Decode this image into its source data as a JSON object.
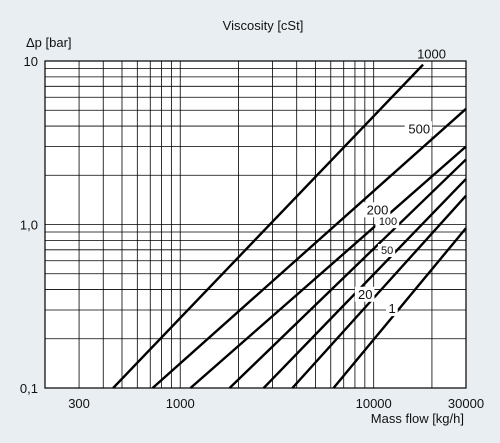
{
  "chart_data": {
    "type": "line",
    "title": "Viscosity [cSt]",
    "xlabel": "Mass flow [kg/h]",
    "ylabel": "Δp [bar]",
    "xscale": "log",
    "yscale": "log",
    "xlim": [
      200,
      30000
    ],
    "ylim": [
      0.1,
      10
    ],
    "x_ticks": [
      {
        "value": 300,
        "label": "300"
      },
      {
        "value": 1000,
        "label": "1000"
      },
      {
        "value": 10000,
        "label": "10000"
      },
      {
        "value": 30000,
        "label": "30000"
      }
    ],
    "y_ticks": [
      {
        "value": 0.1,
        "label": "0,1"
      },
      {
        "value": 1,
        "label": "1,0"
      },
      {
        "value": 10,
        "label": "10"
      }
    ],
    "grid": true,
    "series": [
      {
        "name": "1000",
        "x": [
          450,
          18000
        ],
        "y": [
          0.1,
          9.5
        ]
      },
      {
        "name": "500",
        "x": [
          720,
          30000
        ],
        "y": [
          0.1,
          5.1
        ]
      },
      {
        "name": "200",
        "x": [
          1130,
          30000
        ],
        "y": [
          0.1,
          3.0
        ]
      },
      {
        "name": "100",
        "x": [
          1800,
          30000
        ],
        "y": [
          0.1,
          2.5
        ]
      },
      {
        "name": "50",
        "x": [
          2700,
          30000
        ],
        "y": [
          0.1,
          1.9
        ]
      },
      {
        "name": "20",
        "x": [
          3800,
          30000
        ],
        "y": [
          0.1,
          1.5
        ]
      },
      {
        "name": "1",
        "x": [
          6200,
          30000
        ],
        "y": [
          0.1,
          0.95
        ]
      }
    ]
  }
}
